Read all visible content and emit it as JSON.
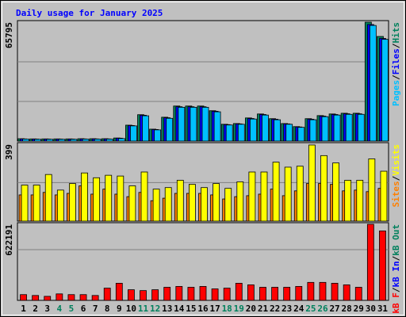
{
  "chart_data": {
    "type": "bar",
    "title": "Daily usage for January 2025",
    "categories": [
      "1",
      "2",
      "3",
      "4",
      "5",
      "6",
      "7",
      "8",
      "9",
      "10",
      "11",
      "12",
      "13",
      "14",
      "15",
      "16",
      "17",
      "18",
      "19",
      "20",
      "21",
      "22",
      "23",
      "24",
      "25",
      "26",
      "27",
      "28",
      "29",
      "30",
      "31"
    ],
    "category_colors": [
      "#000000",
      "#000000",
      "#000000",
      "#00805c",
      "#00805c",
      "#000000",
      "#000000",
      "#000000",
      "#000000",
      "#000000",
      "#00805c",
      "#00805c",
      "#000000",
      "#000000",
      "#000000",
      "#000000",
      "#000000",
      "#00805c",
      "#00805c",
      "#000000",
      "#000000",
      "#000000",
      "#000000",
      "#000000",
      "#00805c",
      "#00805c",
      "#000000",
      "#000000",
      "#000000",
      "#000000",
      "#000000"
    ],
    "separator": "/",
    "panels": [
      {
        "ylim": [
          0,
          65795
        ],
        "yticks": [
          65795
        ],
        "gridlines": [
          21932,
          43863
        ],
        "legend": [
          {
            "label": "Pages",
            "color": "#00c0ff"
          },
          {
            "label": "Files",
            "color": "#0000ff"
          },
          {
            "label": "Hits",
            "color": "#00805c"
          }
        ],
        "series": [
          {
            "color": "#00805c",
            "values": [
              1300,
              1200,
              1200,
              1200,
              1200,
              1300,
              1300,
              1300,
              1700,
              8800,
              14600,
              6600,
              13200,
              19400,
              19400,
              19400,
              16800,
              9300,
              9700,
              12800,
              15000,
              12400,
              9700,
              8000,
              12400,
              14100,
              15000,
              15400,
              15400,
              65795,
              57900
            ]
          },
          {
            "color": "#0000ff",
            "values": [
              1200,
              1100,
              1100,
              1100,
              1100,
              1200,
              1200,
              1200,
              1600,
              8600,
              14300,
              6400,
              12900,
              19000,
              19000,
              19000,
              16500,
              9100,
              9500,
              12500,
              14700,
              12100,
              9500,
              7800,
              12100,
              13800,
              14700,
              15100,
              15100,
              64500,
              56800
            ]
          },
          {
            "color": "#00c0ff",
            "values": [
              1100,
              1000,
              1000,
              1000,
              1000,
              1100,
              1100,
              1100,
              1400,
              8400,
              14000,
              6200,
              12600,
              18700,
              18700,
              18700,
              16200,
              8900,
              9300,
              12200,
              14400,
              11800,
              9300,
              7600,
              11800,
              13500,
              14400,
              14800,
              14800,
              64000,
              56300
            ]
          }
        ]
      },
      {
        "ylim": [
          0,
          399
        ],
        "yticks": [
          399
        ],
        "gridlines": [
          200
        ],
        "legend": [
          {
            "label": "Sites",
            "color": "#ff8000"
          },
          {
            "label": "Visits",
            "color": "#ffff00"
          }
        ],
        "series": [
          {
            "color": "#ff8000",
            "values": [
              136,
              136,
              149,
              136,
              144,
              183,
              140,
              166,
              140,
              127,
              149,
              106,
              119,
              144,
              144,
              144,
              136,
              115,
              127,
              132,
              140,
              166,
              132,
              157,
              195,
              195,
              191,
              157,
              161,
              153,
              170
            ]
          },
          {
            "color": "#ffff00",
            "values": [
              187,
              187,
              242,
              161,
              195,
              250,
              225,
              238,
              234,
              183,
              255,
              166,
              174,
              212,
              191,
              174,
              195,
              170,
              204,
              255,
              255,
              306,
              280,
              285,
              395,
              340,
              302,
              212,
              212,
              323,
              259
            ]
          }
        ]
      },
      {
        "ylim": [
          0,
          622191
        ],
        "yticks": [
          622191
        ],
        "gridlines": [
          414794
        ],
        "legend": [
          {
            "label": "kB F",
            "color": "#ff0000"
          },
          {
            "label": "kB In",
            "color": "#0000ff"
          },
          {
            "label": "kB Out",
            "color": "#00805c"
          }
        ],
        "series": [
          {
            "color": "#ff0000",
            "values": [
              47000,
              40000,
              33000,
              53000,
              47000,
              47000,
              40000,
              100000,
              140000,
              87000,
              80000,
              87000,
              107000,
              114000,
              107000,
              114000,
              94000,
              100000,
              140000,
              127000,
              107000,
              107000,
              107000,
              114000,
              147000,
              147000,
              140000,
              127000,
              107000,
              622191,
              568000
            ]
          }
        ]
      }
    ]
  }
}
